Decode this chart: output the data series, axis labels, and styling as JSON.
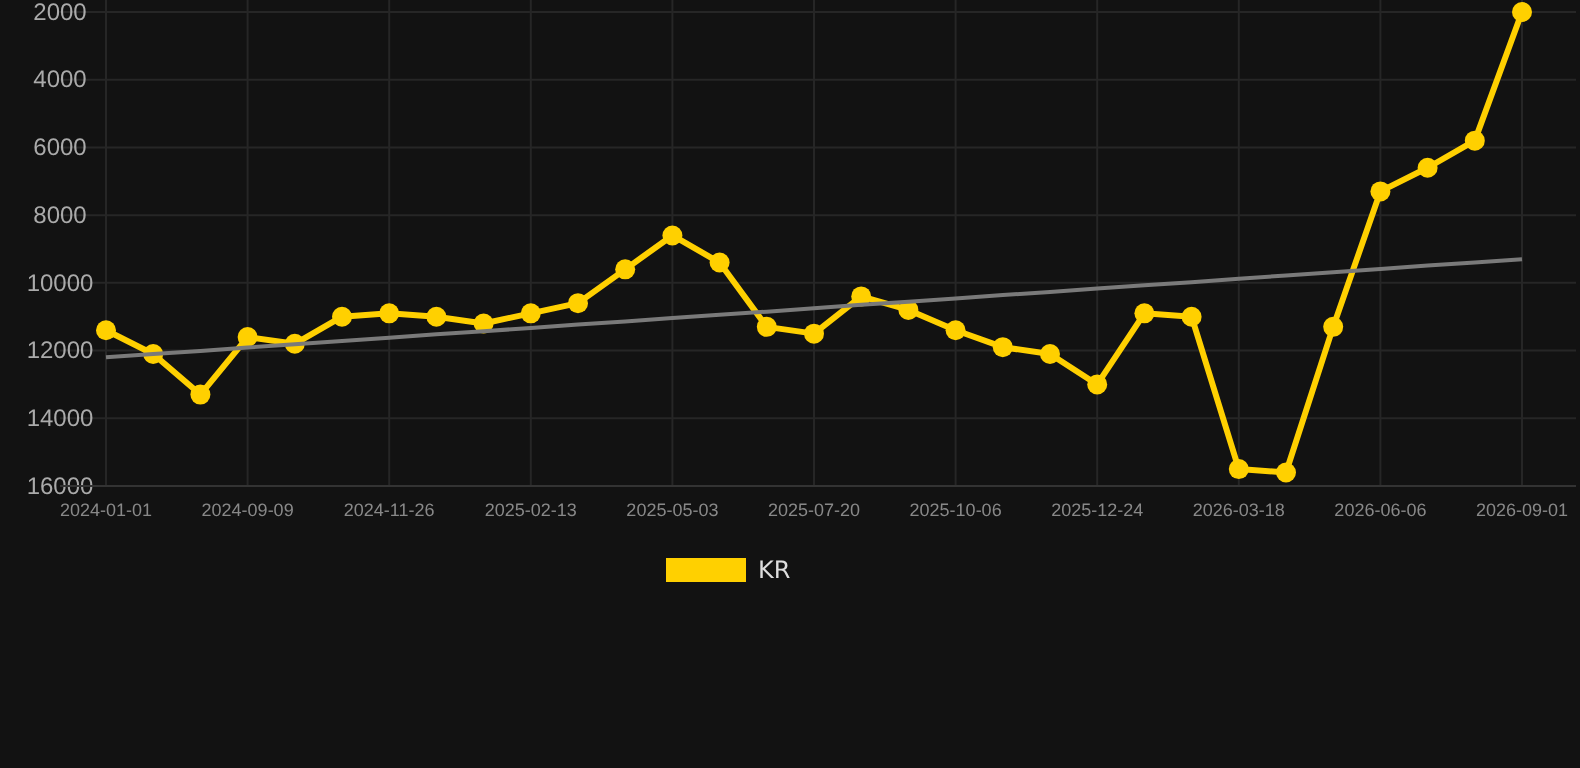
{
  "chart_data": {
    "type": "line",
    "categories": [
      "2024-01-01",
      null,
      null,
      "2024-09-09",
      null,
      null,
      "2024-11-26",
      null,
      null,
      "2025-02-13",
      null,
      null,
      "2025-05-03",
      null,
      null,
      "2025-07-20",
      null,
      null,
      "2025-10-06",
      null,
      null,
      "2025-12-24",
      null,
      null,
      "2026-03-18",
      null,
      null,
      "2026-06-06",
      null,
      null,
      "2026-09-01"
    ],
    "series": [
      {
        "name": "KR",
        "color": "#ffd000",
        "marker": "circle",
        "values": [
          11400,
          12100,
          13300,
          11600,
          11800,
          11000,
          10900,
          11000,
          11200,
          10900,
          10600,
          9600,
          8600,
          9400,
          11300,
          11500,
          10400,
          10800,
          11400,
          11900,
          12100,
          13000,
          10900,
          11000,
          15500,
          15600,
          11300,
          7300,
          6600,
          5800,
          2000
        ]
      },
      {
        "type": "line",
        "color": "#7a7a7a",
        "marker": "none",
        "values": [
          12200,
          12100,
          12010,
          11910,
          11810,
          11720,
          11620,
          11520,
          11430,
          11330,
          11230,
          11140,
          11040,
          10940,
          10850,
          10750,
          10650,
          10560,
          10460,
          10360,
          10270,
          10170,
          10070,
          9980,
          9880,
          9780,
          9690,
          9590,
          9490,
          9400,
          9300
        ]
      }
    ],
    "ylim": [
      16000,
      2000
    ],
    "yticks": [
      16000,
      14000,
      12000,
      10000,
      8000,
      6000,
      4000,
      2000
    ],
    "grid": true,
    "legend": "bottom"
  }
}
